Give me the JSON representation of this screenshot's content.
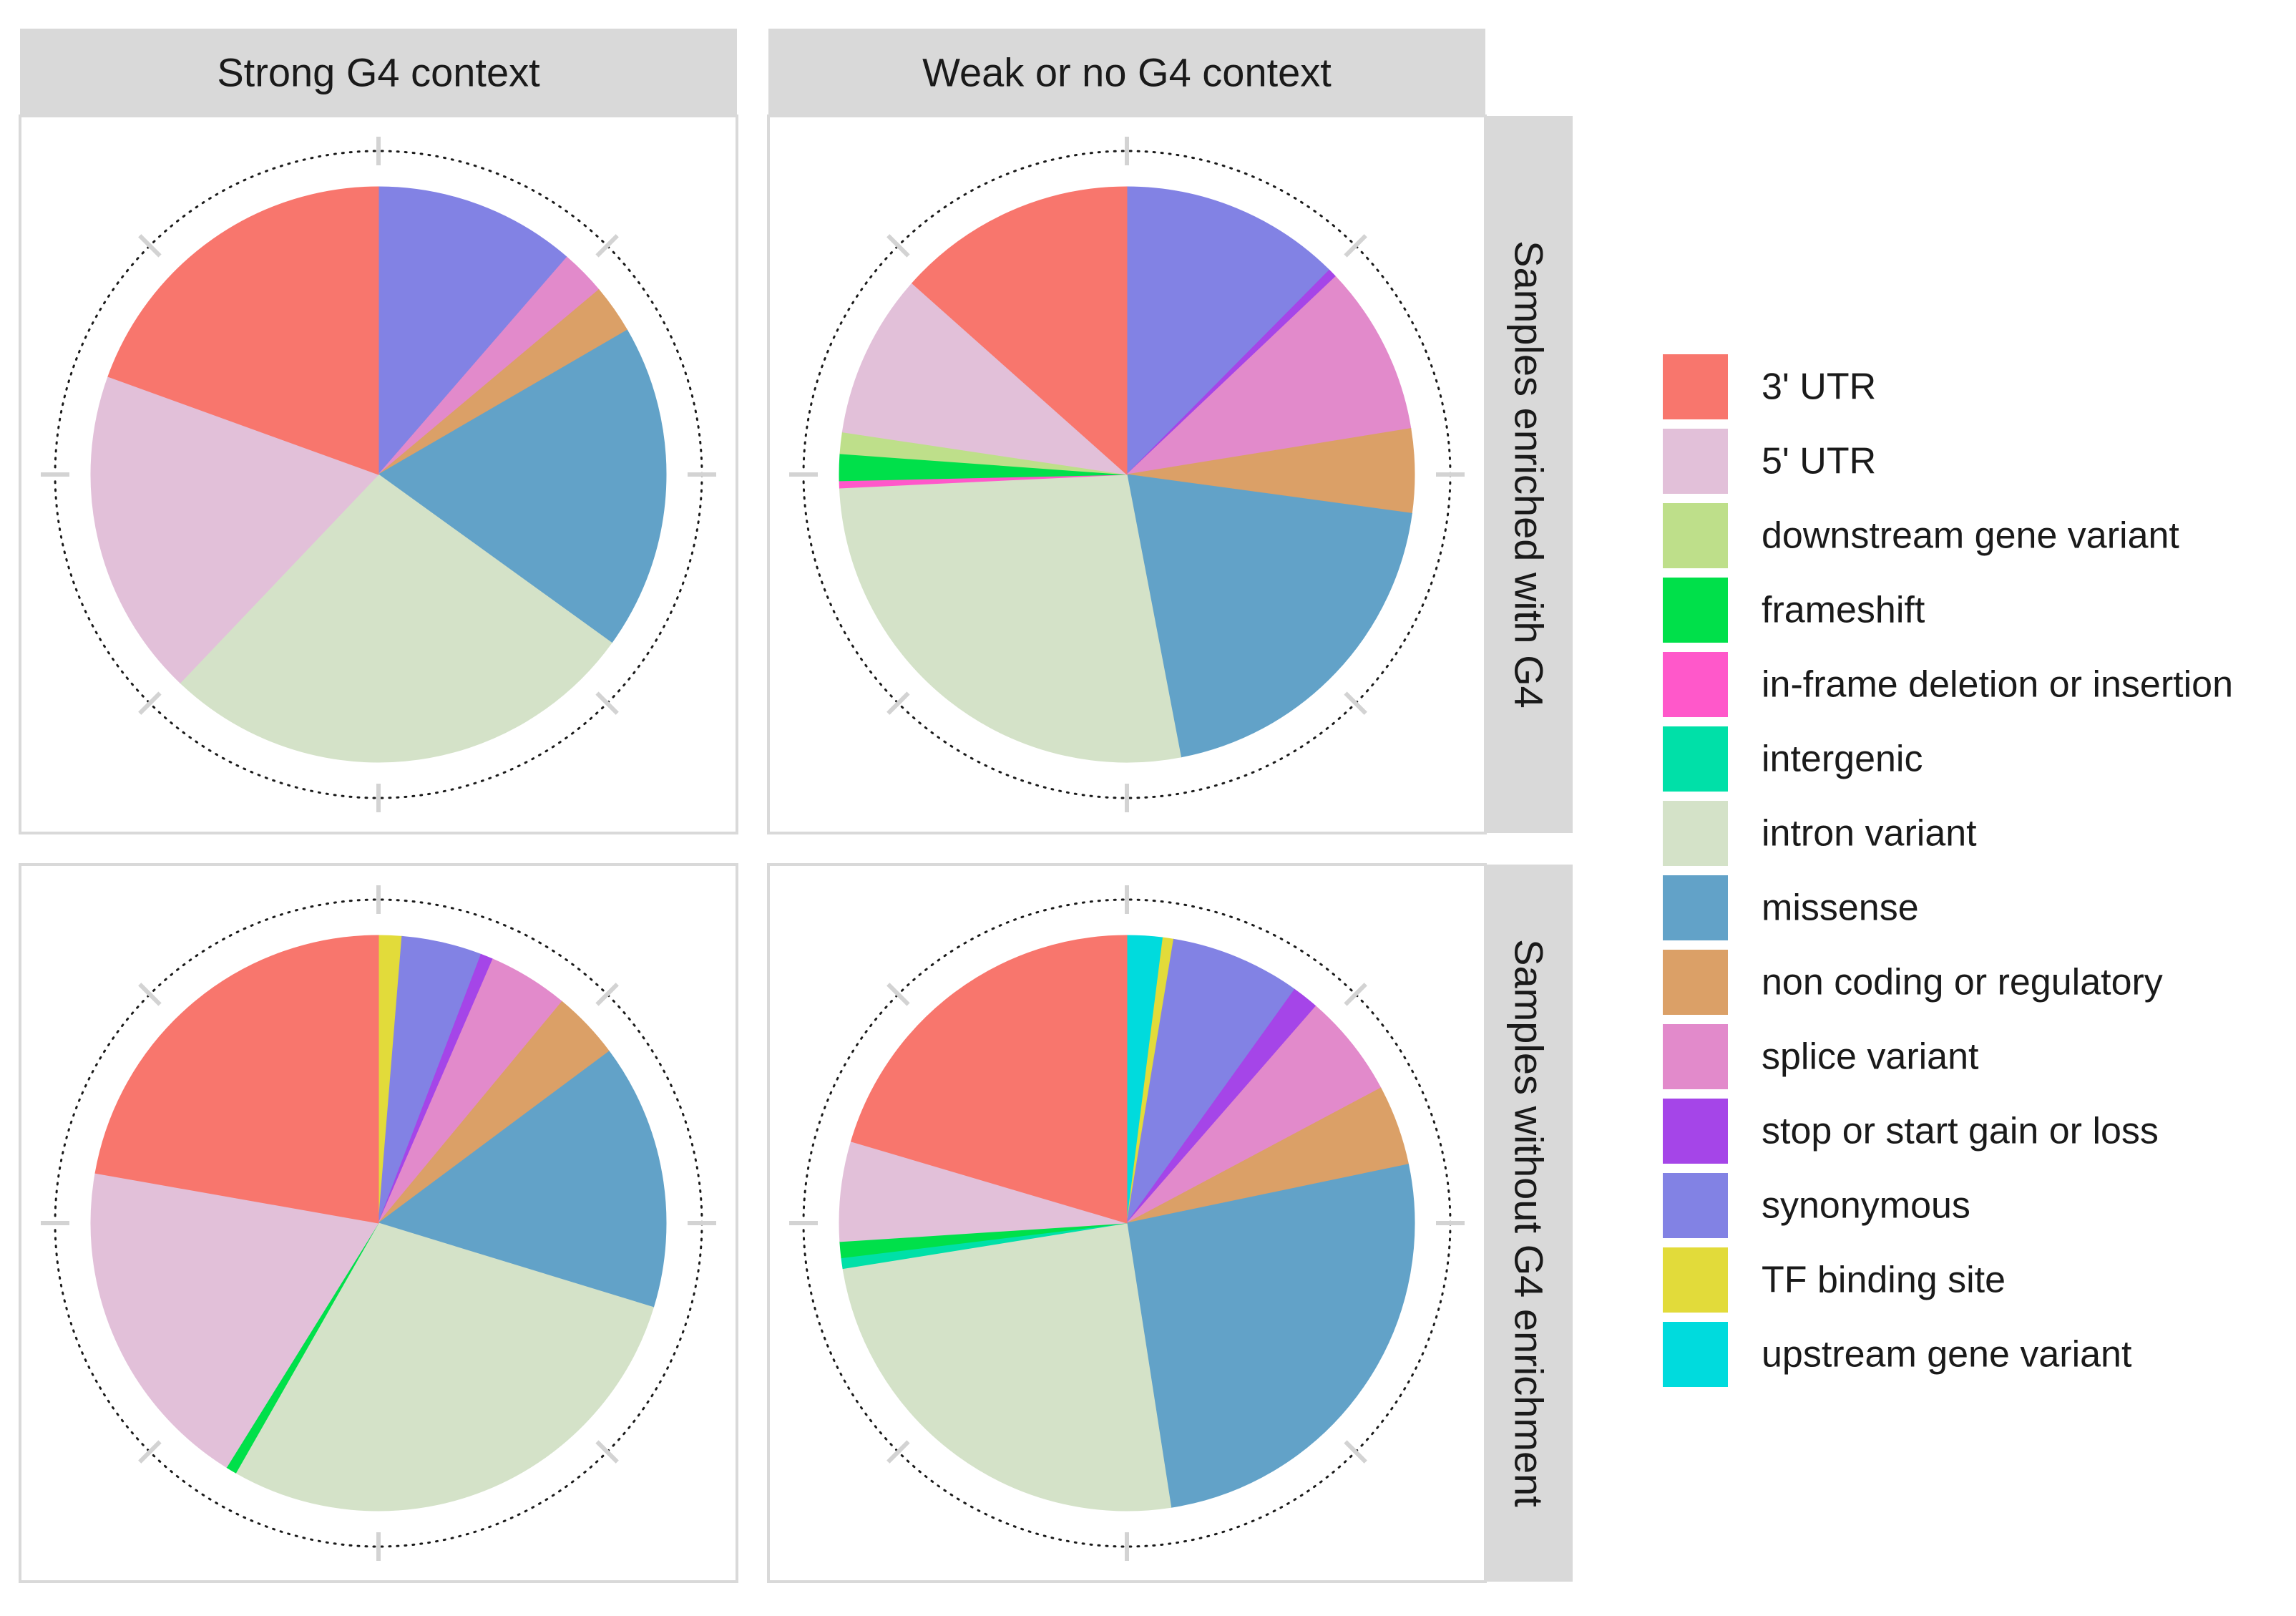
{
  "chart_data": {
    "type": "pie",
    "layout": "facet-grid",
    "columns": [
      "Strong G4 context",
      "Weak or no G4 context"
    ],
    "rows": [
      "Samples enriched with G4",
      "Samples without G4 enrichment"
    ],
    "categories": [
      "3' UTR",
      "5' UTR",
      "downstream gene variant",
      "frameshift",
      "in-frame deletion or insertion",
      "intergenic",
      "intron variant",
      "missense",
      "non coding or regulatory",
      "splice variant",
      "stop or start gain or loss",
      "synonymous",
      "TF binding site",
      "upstream gene variant"
    ],
    "colors": [
      "#F8766D",
      "#E2C0D9",
      "#BEDF8A",
      "#00E04A",
      "#FF58CA",
      "#00E0A8",
      "#D4E2C8",
      "#62A2C8",
      "#DBA067",
      "#E28ACB",
      "#A545E8",
      "#8282E4",
      "#E2DB3A",
      "#00DBDD"
    ],
    "panels": [
      {
        "row": "Samples enriched with G4",
        "column": "Strong G4 context",
        "values": {
          "3' UTR": 18.5,
          "5' UTR": 17.5,
          "intron variant": 25.8,
          "missense": 17.4,
          "non coding or regulatory": 2.6,
          "splice variant": 2.4,
          "synonymous": 10.8
        },
        "unit": "%"
      },
      {
        "row": "Samples enriched with G4",
        "column": "Weak or no G4 context",
        "values": {
          "3' UTR": 13.4,
          "5' UTR": 9.2,
          "downstream gene variant": 1.2,
          "frameshift": 1.5,
          "in-frame deletion or insertion": 0.4,
          "intron variant": 27.2,
          "missense": 19.8,
          "non coding or regulatory": 4.7,
          "splice variant": 9.5,
          "stop or start gain or loss": 0.5,
          "synonymous": 12.4
        },
        "unit": "%"
      },
      {
        "row": "Samples without G4 enrichment",
        "column": "Strong G4 context",
        "values": {
          "3' UTR": 22.2,
          "5' UTR": 18.9,
          "frameshift": 0.6,
          "intron variant": 28.5,
          "missense": 14.9,
          "non coding or regulatory": 3.8,
          "splice variant": 4.5,
          "stop or start gain or loss": 0.7,
          "synonymous": 4.5,
          "TF binding site": 1.3
        },
        "unit": "%"
      },
      {
        "row": "Samples without G4 enrichment",
        "column": "Weak or no G4 context",
        "values": {
          "3' UTR": 20.4,
          "5' UTR": 5.6,
          "frameshift": 0.9,
          "intergenic": 0.6,
          "intron variant": 24.9,
          "missense": 25.8,
          "non coding or regulatory": 4.5,
          "splice variant": 5.8,
          "stop or start gain or loss": 1.5,
          "synonymous": 7.3,
          "TF binding site": 0.6,
          "upstream gene variant": 2.0
        },
        "unit": "%"
      }
    ],
    "slice_order": [
      "upstream gene variant",
      "TF binding site",
      "synonymous",
      "stop or start gain or loss",
      "splice variant",
      "non coding or regulatory",
      "missense",
      "intron variant",
      "intergenic",
      "in-frame deletion or insertion",
      "frameshift",
      "downstream gene variant",
      "5' UTR",
      "3' UTR"
    ],
    "legend": {
      "title": "",
      "position": "right"
    },
    "axes": {
      "theta_ticks": 8,
      "outer_ring": "dotted"
    }
  }
}
